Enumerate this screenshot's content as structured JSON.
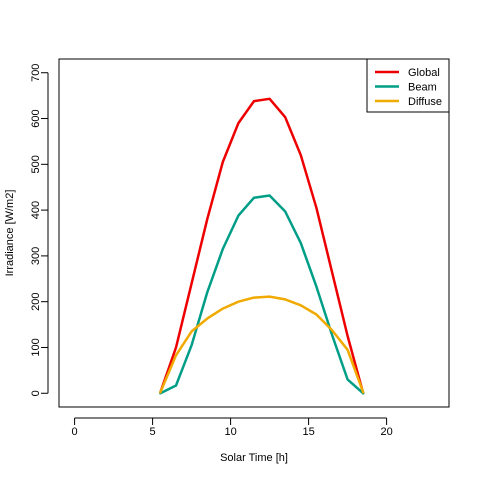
{
  "chart_data": {
    "type": "line",
    "xlabel": "Solar Time [h]",
    "ylabel": "Irradiance [W/m2]",
    "xlim": [
      -1,
      24
    ],
    "ylim": [
      -30,
      730
    ],
    "xticks": [
      0,
      5,
      10,
      15,
      20
    ],
    "yticks": [
      0,
      100,
      200,
      300,
      400,
      500,
      600,
      700
    ],
    "grid": false,
    "legend_position": "top-right",
    "x": [
      5.5,
      6.5,
      7.5,
      8.5,
      9.5,
      10.5,
      11.5,
      12.5,
      13.5,
      14.5,
      15.5,
      16.5,
      17.5,
      18.5
    ],
    "series": [
      {
        "name": "Global",
        "color": "#ee0000",
        "values": [
          2,
          100,
          240,
          380,
          505,
          590,
          638,
          643,
          603,
          520,
          405,
          265,
          125,
          0
        ]
      },
      {
        "name": "Beam",
        "color": "#009e87",
        "values": [
          0,
          17,
          105,
          220,
          315,
          388,
          427,
          432,
          397,
          328,
          233,
          128,
          30,
          0
        ]
      },
      {
        "name": "Diffuse",
        "color": "#f0aa00",
        "values": [
          2,
          83,
          135,
          163,
          185,
          200,
          209,
          211,
          205,
          192,
          172,
          138,
          95,
          2
        ]
      }
    ]
  }
}
